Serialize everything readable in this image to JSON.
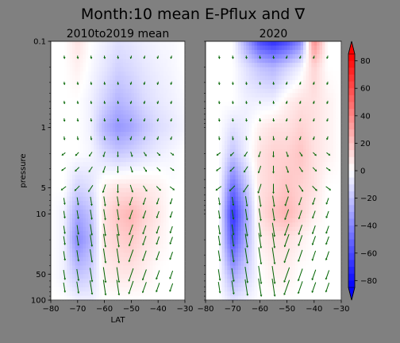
{
  "figure": {
    "suptitle": "Month:10 mean E-Pflux and ∇"
  },
  "colorbar": {
    "ticks": [
      80,
      60,
      40,
      20,
      0,
      -20,
      -40,
      -60,
      -80
    ],
    "vmin": -85,
    "vmax": 85,
    "colors": {
      "low": "#0000ff",
      "mid": "#ffffff",
      "high": "#ff0000"
    }
  },
  "chart_data": [
    {
      "type": "heatmap",
      "title": "2010to2019 mean",
      "xlabel": "LAT",
      "ylabel": "pressure",
      "xlim": [
        -80,
        -30
      ],
      "ylim": [
        100,
        0.1
      ],
      "yscale": "log",
      "xticks": [
        -80,
        -70,
        -60,
        -50,
        -40,
        -30
      ],
      "yticks": [
        0.1,
        1,
        5,
        10,
        50,
        100
      ],
      "x": [
        -80,
        -75,
        -70,
        -65,
        -60,
        -55,
        -50,
        -45,
        -40,
        -35,
        -30
      ],
      "y": [
        0.1,
        0.2,
        0.5,
        1,
        2,
        5,
        10,
        20,
        50,
        100
      ],
      "z": [
        [
          0,
          0,
          10,
          0,
          -5,
          -10,
          -8,
          -5,
          -3,
          -2,
          0
        ],
        [
          0,
          0,
          5,
          -2,
          -8,
          -15,
          -12,
          -8,
          -5,
          -3,
          0
        ],
        [
          0,
          0,
          0,
          -5,
          -15,
          -25,
          -20,
          -12,
          -8,
          -5,
          -2
        ],
        [
          0,
          0,
          0,
          -5,
          -25,
          -35,
          -30,
          -20,
          -12,
          -8,
          -3
        ],
        [
          0,
          0,
          0,
          -3,
          -12,
          -18,
          -15,
          -10,
          -6,
          -3,
          0
        ],
        [
          0,
          0,
          -15,
          -10,
          5,
          10,
          10,
          8,
          5,
          0,
          0
        ],
        [
          0,
          -5,
          -30,
          -20,
          10,
          20,
          25,
          15,
          8,
          0,
          0
        ],
        [
          0,
          -5,
          -40,
          -25,
          10,
          15,
          18,
          10,
          5,
          0,
          0
        ],
        [
          0,
          -5,
          -20,
          -15,
          5,
          8,
          8,
          5,
          0,
          0,
          0
        ],
        [
          0,
          0,
          -5,
          -5,
          0,
          0,
          0,
          0,
          0,
          0,
          0
        ]
      ],
      "quiver_scale": 1.0
    },
    {
      "type": "heatmap",
      "title": "2020",
      "xlabel": "",
      "ylabel": "",
      "xlim": [
        -80,
        -30
      ],
      "ylim": [
        100,
        0.1
      ],
      "yscale": "log",
      "xticks": [
        -80,
        -70,
        -60,
        -50,
        -40,
        -30
      ],
      "yticks": [],
      "x": [
        -80,
        -75,
        -70,
        -65,
        -60,
        -55,
        -50,
        -45,
        -40,
        -35,
        -30
      ],
      "y": [
        0.1,
        0.2,
        0.5,
        1,
        2,
        5,
        10,
        20,
        50,
        100
      ],
      "z": [
        [
          0,
          0,
          0,
          -30,
          -60,
          -70,
          -60,
          -40,
          40,
          0,
          0
        ],
        [
          0,
          0,
          0,
          -10,
          -20,
          -25,
          -15,
          -5,
          15,
          0,
          0
        ],
        [
          0,
          0,
          0,
          -5,
          -5,
          -5,
          5,
          10,
          10,
          5,
          0
        ],
        [
          0,
          0,
          -10,
          -5,
          5,
          10,
          10,
          15,
          10,
          5,
          0
        ],
        [
          0,
          0,
          -20,
          -5,
          10,
          15,
          15,
          20,
          10,
          5,
          0
        ],
        [
          0,
          0,
          -50,
          -20,
          10,
          15,
          20,
          15,
          10,
          0,
          0
        ],
        [
          0,
          0,
          -70,
          -30,
          10,
          20,
          25,
          15,
          5,
          0,
          0
        ],
        [
          0,
          0,
          -60,
          -25,
          5,
          10,
          10,
          5,
          0,
          0,
          0
        ],
        [
          0,
          0,
          -30,
          -15,
          0,
          5,
          5,
          0,
          0,
          0,
          0
        ],
        [
          0,
          0,
          -10,
          -5,
          0,
          0,
          0,
          0,
          0,
          0,
          0
        ]
      ],
      "quiver_scale": 1.2
    }
  ]
}
